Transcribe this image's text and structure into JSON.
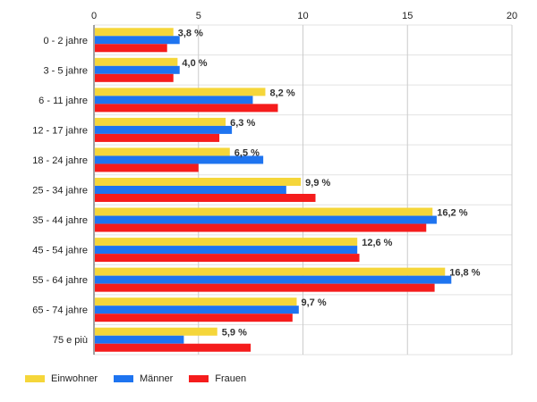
{
  "chart_data": {
    "type": "bar",
    "orientation": "horizontal",
    "categories": [
      "0 - 2 jahre",
      "3 - 5 jahre",
      "6 - 11 jahre",
      "12 - 17 jahre",
      "18 - 24 jahre",
      "25 - 34 jahre",
      "35 - 44 jahre",
      "45 - 54 jahre",
      "55 - 64 jahre",
      "65 - 74 jahre",
      "75 e più"
    ],
    "series": [
      {
        "name": "Einwohner",
        "color": "#f5d63a",
        "values": [
          3.8,
          4.0,
          8.2,
          6.3,
          6.5,
          9.9,
          16.2,
          12.6,
          16.8,
          9.7,
          5.9
        ]
      },
      {
        "name": "Männer",
        "color": "#1e74f0",
        "values": [
          4.1,
          4.1,
          7.6,
          6.6,
          8.1,
          9.2,
          16.4,
          12.6,
          17.1,
          9.8,
          4.3
        ]
      },
      {
        "name": "Frauen",
        "color": "#f51c1c",
        "values": [
          3.5,
          3.8,
          8.8,
          6.0,
          5.0,
          10.6,
          15.9,
          12.7,
          16.3,
          9.5,
          7.5
        ]
      }
    ],
    "data_labels": [
      "3,8 %",
      "4,0 %",
      "8,2 %",
      "6,3 %",
      "6,5 %",
      "9,9 %",
      "16,2 %",
      "12,6 %",
      "16,8 %",
      "9,7 %",
      "5,9 %"
    ],
    "x_ticks": [
      "0",
      "5",
      "10",
      "15",
      "20"
    ],
    "xlim": [
      0,
      20
    ],
    "grid": true,
    "legend_position": "bottom-left"
  }
}
